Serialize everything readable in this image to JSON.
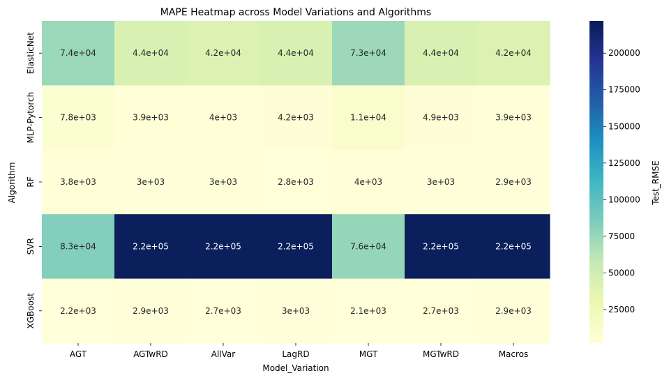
{
  "chart_data": {
    "type": "heatmap",
    "title": "MAPE Heatmap across Model Variations and Algorithms",
    "xlabel": "Model_Variation",
    "ylabel": "Algorithm",
    "x_categories": [
      "AGT",
      "AGTwRD",
      "AllVar",
      "LagRD",
      "MGT",
      "MGTwRD",
      "Macros"
    ],
    "y_categories": [
      "ElasticNet",
      "MLP-Pytorch",
      "RF",
      "SVR",
      "XGBoost"
    ],
    "values": [
      [
        74000,
        44000,
        42000,
        44000,
        73000,
        44000,
        42000
      ],
      [
        7800,
        3900,
        4000,
        4200,
        11000,
        4900,
        3900
      ],
      [
        3800,
        3000,
        3000,
        2800,
        4000,
        3000,
        2900
      ],
      [
        83000,
        220000,
        220000,
        220000,
        76000,
        220000,
        220000
      ],
      [
        2200,
        2900,
        2700,
        3000,
        2100,
        2700,
        2900
      ]
    ],
    "cell_labels": [
      [
        "7.4e+04",
        "4.4e+04",
        "4.2e+04",
        "4.4e+04",
        "7.3e+04",
        "4.4e+04",
        "4.2e+04"
      ],
      [
        "7.8e+03",
        "3.9e+03",
        "4e+03",
        "4.2e+03",
        "1.1e+04",
        "4.9e+03",
        "3.9e+03"
      ],
      [
        "3.8e+03",
        "3e+03",
        "3e+03",
        "2.8e+03",
        "4e+03",
        "3e+03",
        "2.9e+03"
      ],
      [
        "8.3e+04",
        "2.2e+05",
        "2.2e+05",
        "2.2e+05",
        "7.6e+04",
        "2.2e+05",
        "2.2e+05"
      ],
      [
        "2.2e+03",
        "2.9e+03",
        "2.7e+03",
        "3e+03",
        "2.1e+03",
        "2.7e+03",
        "2.9e+03"
      ]
    ],
    "colorbar": {
      "label": "Test_RMSE",
      "range": [
        2100,
        222000
      ],
      "ticks": [
        25000,
        50000,
        75000,
        100000,
        125000,
        150000,
        175000,
        200000
      ],
      "tick_labels": [
        "25000",
        "50000",
        "75000",
        "100000",
        "125000",
        "150000",
        "175000",
        "200000"
      ],
      "colormap": "YlGnBu",
      "colormap_stops": [
        "#ffffd9",
        "#edf8b1",
        "#c7e9b4",
        "#7fcdbb",
        "#41b6c4",
        "#1d91c0",
        "#225ea8",
        "#253494",
        "#081d58"
      ]
    }
  }
}
